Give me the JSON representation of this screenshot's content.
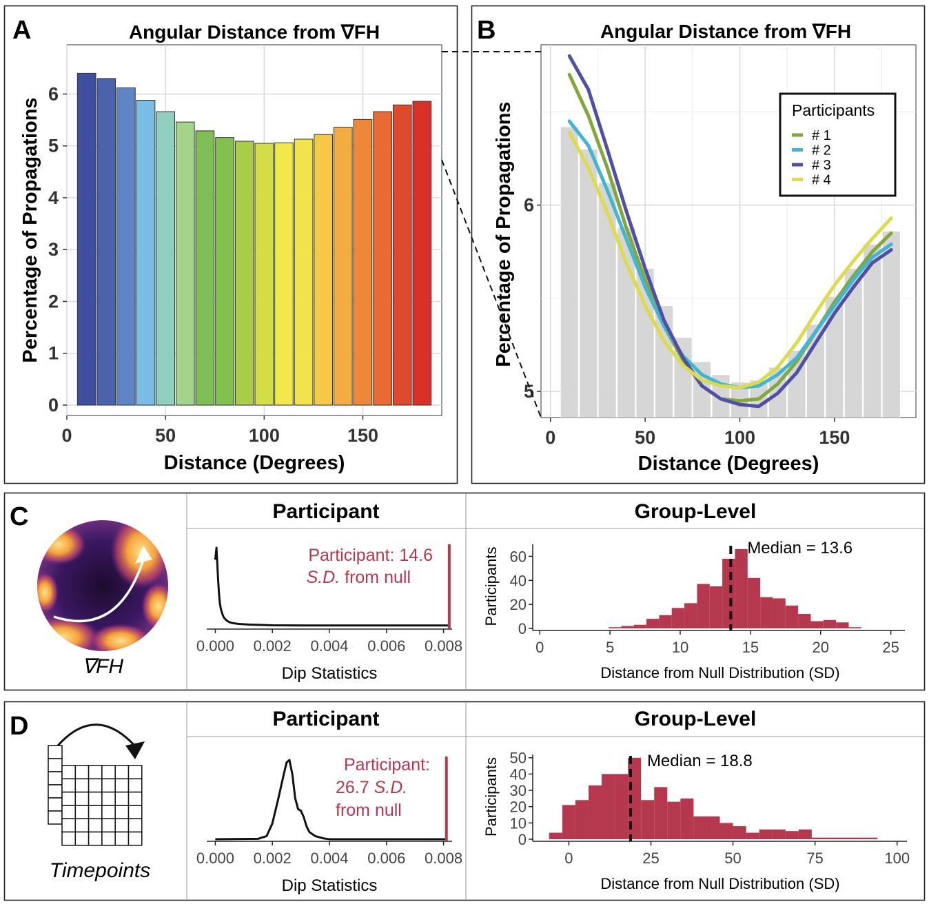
{
  "panels": {
    "a": {
      "letter": "A"
    },
    "b": {
      "letter": "B"
    },
    "c": {
      "letter": "C",
      "icon_label": "∇FH"
    },
    "d": {
      "letter": "D",
      "icon_label": "Timepoints"
    }
  },
  "colors": {
    "bar_gradient": [
      "#3f4f9e",
      "#4c62ab",
      "#5f85c4",
      "#79bde6",
      "#8fcfbe",
      "#a3d48a",
      "#7fbe56",
      "#82c14d",
      "#aacd47",
      "#d3de47",
      "#f1e94a",
      "#f2e24b",
      "#f5c947",
      "#f2ac40",
      "#ee8838",
      "#ea6a33",
      "#e04a2c",
      "#d93027"
    ],
    "hist_fill": "#b5384f",
    "annotation_red": "#b5384f",
    "gray_bars": "#d6d6d6",
    "grid": "#d9d9d9"
  },
  "chart_data": [
    {
      "id": "A",
      "type": "bar",
      "title": "Angular Distance from ∇FH",
      "xlabel": "Distance (Degrees)",
      "ylabel": "Percentage of Propagations",
      "x": [
        10,
        20,
        30,
        40,
        50,
        60,
        70,
        80,
        90,
        100,
        110,
        120,
        130,
        140,
        150,
        160,
        170,
        180
      ],
      "values": [
        6.4,
        6.3,
        6.12,
        5.88,
        5.66,
        5.46,
        5.29,
        5.16,
        5.09,
        5.05,
        5.06,
        5.13,
        5.22,
        5.36,
        5.51,
        5.66,
        5.79,
        5.86
      ],
      "xlim": [
        0,
        190
      ],
      "ylim": [
        -0.2,
        6.95
      ],
      "xticks": [
        "0",
        "50",
        "100",
        "150"
      ],
      "xtick_values": [
        0,
        50,
        100,
        150
      ],
      "yticks": [
        "0",
        "1",
        "2",
        "3",
        "4",
        "5",
        "6"
      ],
      "ytick_values": [
        0,
        1,
        2,
        3,
        4,
        5,
        6
      ],
      "grid": true
    },
    {
      "id": "B",
      "type": "line",
      "title": "Angular Distance from ∇FH",
      "xlabel": "Distance (Degrees)",
      "ylabel": "Percentage of Propagations",
      "legend_title": "Participants",
      "legend_position": "top-right",
      "xlim": [
        -5,
        193
      ],
      "ylim": [
        4.86,
        6.86
      ],
      "xticks": [
        "0",
        "50",
        "100",
        "150"
      ],
      "xtick_values": [
        0,
        50,
        100,
        150
      ],
      "yticks": [
        "5",
        "6"
      ],
      "ytick_values": [
        5,
        6
      ],
      "grid": true,
      "bars": {
        "x": [
          10,
          20,
          30,
          40,
          50,
          60,
          70,
          80,
          90,
          100,
          110,
          120,
          130,
          140,
          150,
          160,
          170,
          180
        ],
        "values": [
          6.42,
          6.3,
          6.12,
          5.88,
          5.66,
          5.46,
          5.29,
          5.16,
          5.09,
          5.05,
          5.06,
          5.13,
          5.22,
          5.36,
          5.51,
          5.66,
          5.79,
          5.86
        ]
      },
      "series": [
        {
          "name": "# 1",
          "color": "#82a83a",
          "x": [
            10,
            20,
            30,
            40,
            50,
            60,
            70,
            80,
            90,
            100,
            110,
            120,
            130,
            140,
            150,
            160,
            170,
            180
          ],
          "values": [
            6.7,
            6.48,
            6.2,
            5.88,
            5.6,
            5.35,
            5.17,
            5.03,
            4.96,
            4.95,
            4.96,
            5.04,
            5.16,
            5.32,
            5.48,
            5.62,
            5.75,
            5.85
          ]
        },
        {
          "name": "# 2",
          "color": "#3fb6d2",
          "x": [
            10,
            20,
            30,
            40,
            50,
            60,
            70,
            80,
            90,
            100,
            110,
            120,
            130,
            140,
            150,
            160,
            170,
            180
          ],
          "values": [
            6.45,
            6.32,
            6.08,
            5.82,
            5.56,
            5.35,
            5.19,
            5.09,
            5.04,
            5.02,
            5.03,
            5.09,
            5.18,
            5.32,
            5.46,
            5.6,
            5.72,
            5.79
          ]
        },
        {
          "name": "# 3",
          "color": "#4f4fa6",
          "x": [
            10,
            20,
            30,
            40,
            50,
            60,
            70,
            80,
            90,
            100,
            110,
            120,
            130,
            140,
            150,
            160,
            170,
            180
          ],
          "values": [
            6.8,
            6.62,
            6.3,
            5.97,
            5.66,
            5.38,
            5.18,
            5.03,
            4.96,
            4.93,
            4.92,
            4.99,
            5.1,
            5.26,
            5.42,
            5.56,
            5.69,
            5.76
          ]
        },
        {
          "name": "# 4",
          "color": "#dcdc4a",
          "x": [
            10,
            20,
            30,
            40,
            50,
            60,
            70,
            80,
            90,
            100,
            110,
            120,
            130,
            140,
            150,
            160,
            170,
            180
          ],
          "values": [
            6.39,
            6.2,
            5.96,
            5.69,
            5.46,
            5.27,
            5.14,
            5.06,
            5.03,
            5.02,
            5.05,
            5.13,
            5.26,
            5.42,
            5.57,
            5.7,
            5.82,
            5.93
          ]
        }
      ]
    },
    {
      "id": "C-participant",
      "type": "line",
      "header": "Participant",
      "xlabel": "Dip Statistics",
      "xticks": [
        "0.000",
        "0.002",
        "0.004",
        "0.006",
        "0.008"
      ],
      "xtick_values": [
        0,
        0.002,
        0.004,
        0.006,
        0.008
      ],
      "xlim": [
        -0.0003,
        0.0083
      ],
      "marker_value": 0.0082,
      "annotation": {
        "line1": "Participant: 14.6",
        "line2_italic": "S.D.",
        "line2_rest": " from null"
      },
      "x": [
        0,
        4e-05,
        7e-05,
        0.0001,
        0.00013,
        0.00016,
        0.0002,
        0.00025,
        0.0003,
        0.0004,
        0.0005,
        0.0006,
        0.0008,
        0.001,
        0.0012,
        0.0014,
        0.0016,
        0.0018,
        0.002,
        0.003,
        0.004,
        0.005,
        0.006,
        0.007,
        0.0082
      ],
      "values": [
        0.85,
        1.0,
        0.8,
        0.58,
        0.42,
        0.3,
        0.22,
        0.16,
        0.12,
        0.08,
        0.06,
        0.05,
        0.04,
        0.035,
        0.03,
        0.028,
        0.026,
        0.024,
        0.022,
        0.02,
        0.02,
        0.02,
        0.02,
        0.02,
        0.02
      ]
    },
    {
      "id": "C-group",
      "type": "bar",
      "header": "Group-Level",
      "xlabel": "Distance from Null Distribution (SD)",
      "ylabel": "Participants",
      "median_label": "Median = 13.6",
      "median": 13.6,
      "xlim": [
        -0.5,
        26
      ],
      "ylim": [
        0,
        70
      ],
      "xticks": [
        "0",
        "5",
        "10",
        "15",
        "20",
        "25"
      ],
      "xtick_values": [
        0,
        5,
        10,
        15,
        20,
        25
      ],
      "yticks": [
        "0",
        "20",
        "40",
        "60"
      ],
      "ytick_values": [
        0,
        20,
        40,
        60
      ],
      "bin_width": 0.9,
      "bin_starts": [
        4.9,
        5.8,
        6.7,
        7.6,
        8.5,
        9.4,
        10.3,
        11.2,
        12.1,
        13.0,
        13.9,
        14.8,
        15.7,
        16.6,
        17.5,
        18.4,
        19.3,
        20.2,
        21.1,
        22.0
      ],
      "values": [
        1,
        2,
        3,
        8,
        11,
        17,
        21,
        37,
        35,
        58,
        66,
        42,
        26,
        25,
        19,
        12,
        6,
        7,
        5,
        1
      ]
    },
    {
      "id": "D-participant",
      "type": "line",
      "header": "Participant",
      "xlabel": "Dip Statistics",
      "xticks": [
        "0.000",
        "0.002",
        "0.004",
        "0.006",
        "0.008"
      ],
      "xtick_values": [
        0,
        0.002,
        0.004,
        0.006,
        0.008
      ],
      "xlim": [
        -0.0003,
        0.0083
      ],
      "marker_value": 0.0081,
      "annotation": {
        "line1": "Participant:",
        "line2_value": "26.7 ",
        "line2_italic": "S.D.",
        "line3": "from null"
      },
      "x": [
        0,
        0.0015,
        0.0018,
        0.002,
        0.0022,
        0.0024,
        0.0025,
        0.0026,
        0.0027,
        0.0028,
        0.0029,
        0.003,
        0.0031,
        0.0032,
        0.0033,
        0.0035,
        0.0038,
        0.004,
        0.005,
        0.006,
        0.007,
        0.0081
      ],
      "values": [
        0,
        0.005,
        0.04,
        0.2,
        0.5,
        0.82,
        0.97,
        1.0,
        0.82,
        0.52,
        0.38,
        0.36,
        0.28,
        0.16,
        0.09,
        0.04,
        0.01,
        0,
        0,
        0,
        0,
        0
      ]
    },
    {
      "id": "D-group",
      "type": "bar",
      "header": "Group-Level",
      "xlabel": "Distance from Null Distribution (SD)",
      "ylabel": "Participants",
      "median_label": "Median = 18.8",
      "median": 18.8,
      "xlim": [
        -11,
        103
      ],
      "ylim": [
        0,
        52
      ],
      "xticks": [
        "0",
        "25",
        "50",
        "75",
        "100"
      ],
      "xtick_values": [
        0,
        25,
        50,
        75,
        100
      ],
      "yticks": [
        "0",
        "10",
        "20",
        "30",
        "40",
        "50"
      ],
      "ytick_values": [
        0,
        10,
        20,
        30,
        40,
        50
      ],
      "bin_width": 4,
      "bin_starts": [
        -6,
        -2,
        2,
        6,
        10,
        14,
        18,
        22,
        26,
        30,
        34,
        38,
        42,
        46,
        50,
        54,
        58,
        62,
        66,
        70,
        74,
        78,
        82,
        86,
        90
      ],
      "values": [
        4,
        21,
        24,
        33,
        40,
        40,
        50,
        24,
        32,
        23,
        25,
        14,
        14,
        10,
        8,
        4,
        6,
        6,
        5,
        6,
        1,
        1,
        1,
        1,
        1
      ]
    }
  ]
}
